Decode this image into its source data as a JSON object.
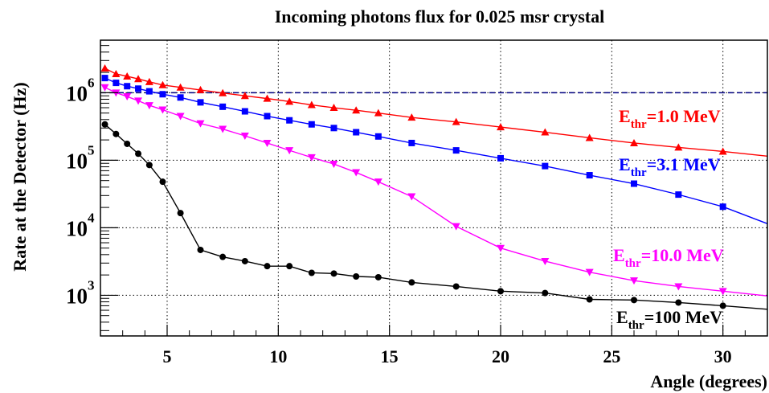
{
  "chart_data": {
    "type": "line",
    "title": "Incoming photons flux for 0.025 msr crystal",
    "xlabel": "Angle (degrees)",
    "ylabel": "Rate at the Detector (Hz)",
    "xlim": [
      2,
      32
    ],
    "ylim": [
      250,
      6000000
    ],
    "yscale": "log",
    "grid": true,
    "x_ticks": [
      "5",
      "10",
      "15",
      "20",
      "25",
      "30"
    ],
    "y_ticks": [
      {
        "base": "10",
        "exp": "3"
      },
      {
        "base": "10",
        "exp": "4"
      },
      {
        "base": "10",
        "exp": "5"
      },
      {
        "base": "10",
        "exp": "6"
      }
    ],
    "reference_line": {
      "y": 1000000,
      "color": "#000080",
      "style": "dashed"
    },
    "series": [
      {
        "name": "E_thr=1.0 MeV",
        "label_main": "E",
        "label_sub": "thr",
        "label_tail": "=1.0 MeV",
        "color": "#ff0000",
        "marker": "triangle-up",
        "x": [
          2.2,
          2.7,
          3.2,
          3.7,
          4.2,
          4.8,
          5.6,
          6.5,
          7.5,
          8.5,
          9.5,
          10.5,
          11.5,
          12.5,
          13.5,
          14.5,
          16,
          18,
          20,
          22,
          24,
          26,
          28,
          30,
          32
        ],
        "y": [
          2300000,
          1900000,
          1750000,
          1600000,
          1450000,
          1300000,
          1200000,
          1100000,
          990000,
          900000,
          820000,
          740000,
          660000,
          600000,
          550000,
          500000,
          430000,
          370000,
          310000,
          260000,
          215000,
          180000,
          155000,
          135000,
          115000
        ]
      },
      {
        "name": "E_thr=3.1 MeV",
        "label_main": "E",
        "label_sub": "thr",
        "label_tail": "=3.1 MeV",
        "color": "#0000ff",
        "marker": "square",
        "x": [
          2.2,
          2.7,
          3.2,
          3.7,
          4.2,
          4.8,
          5.6,
          6.5,
          7.5,
          8.5,
          9.5,
          10.5,
          11.5,
          12.5,
          13.5,
          14.5,
          16,
          18,
          20,
          22,
          24,
          26,
          28,
          30,
          32
        ],
        "y": [
          1650000,
          1400000,
          1250000,
          1150000,
          1050000,
          950000,
          850000,
          720000,
          620000,
          530000,
          450000,
          390000,
          340000,
          300000,
          260000,
          225000,
          180000,
          140000,
          107000,
          82000,
          60000,
          45000,
          31000,
          20500,
          11500
        ]
      },
      {
        "name": "E_thr=10.0 MeV",
        "label_main": "E",
        "label_sub": "thr",
        "label_tail": "=10.0 MeV",
        "color": "#ff00ff",
        "marker": "triangle-down",
        "x": [
          2.2,
          2.7,
          3.2,
          3.7,
          4.2,
          4.8,
          5.6,
          6.5,
          7.5,
          8.5,
          9.5,
          10.5,
          11.5,
          12.5,
          13.5,
          14.5,
          16,
          18,
          20,
          22,
          24,
          26,
          28,
          30,
          32
        ],
        "y": [
          1200000,
          1000000,
          880000,
          760000,
          650000,
          560000,
          450000,
          350000,
          290000,
          230000,
          180000,
          140000,
          110000,
          88000,
          66000,
          48000,
          29000,
          10500,
          5000,
          3200,
          2200,
          1650,
          1350,
          1150,
          980
        ]
      },
      {
        "name": "E_thr=100 MeV",
        "label_main": "E",
        "label_sub": "thr",
        "label_tail": "=100 MeV",
        "color": "#000000",
        "marker": "circle",
        "x": [
          2.2,
          2.7,
          3.2,
          3.7,
          4.2,
          4.8,
          5.6,
          6.5,
          7.5,
          8.5,
          9.5,
          10.5,
          11.5,
          12.5,
          13.5,
          14.5,
          16,
          18,
          20,
          22,
          24,
          26,
          28,
          30,
          32
        ],
        "y": [
          340000,
          245000,
          175000,
          125000,
          85000,
          48000,
          16500,
          4700,
          3700,
          3200,
          2700,
          2700,
          2150,
          2100,
          1900,
          1850,
          1550,
          1350,
          1150,
          1080,
          870,
          850,
          780,
          700,
          620
        ]
      }
    ]
  }
}
